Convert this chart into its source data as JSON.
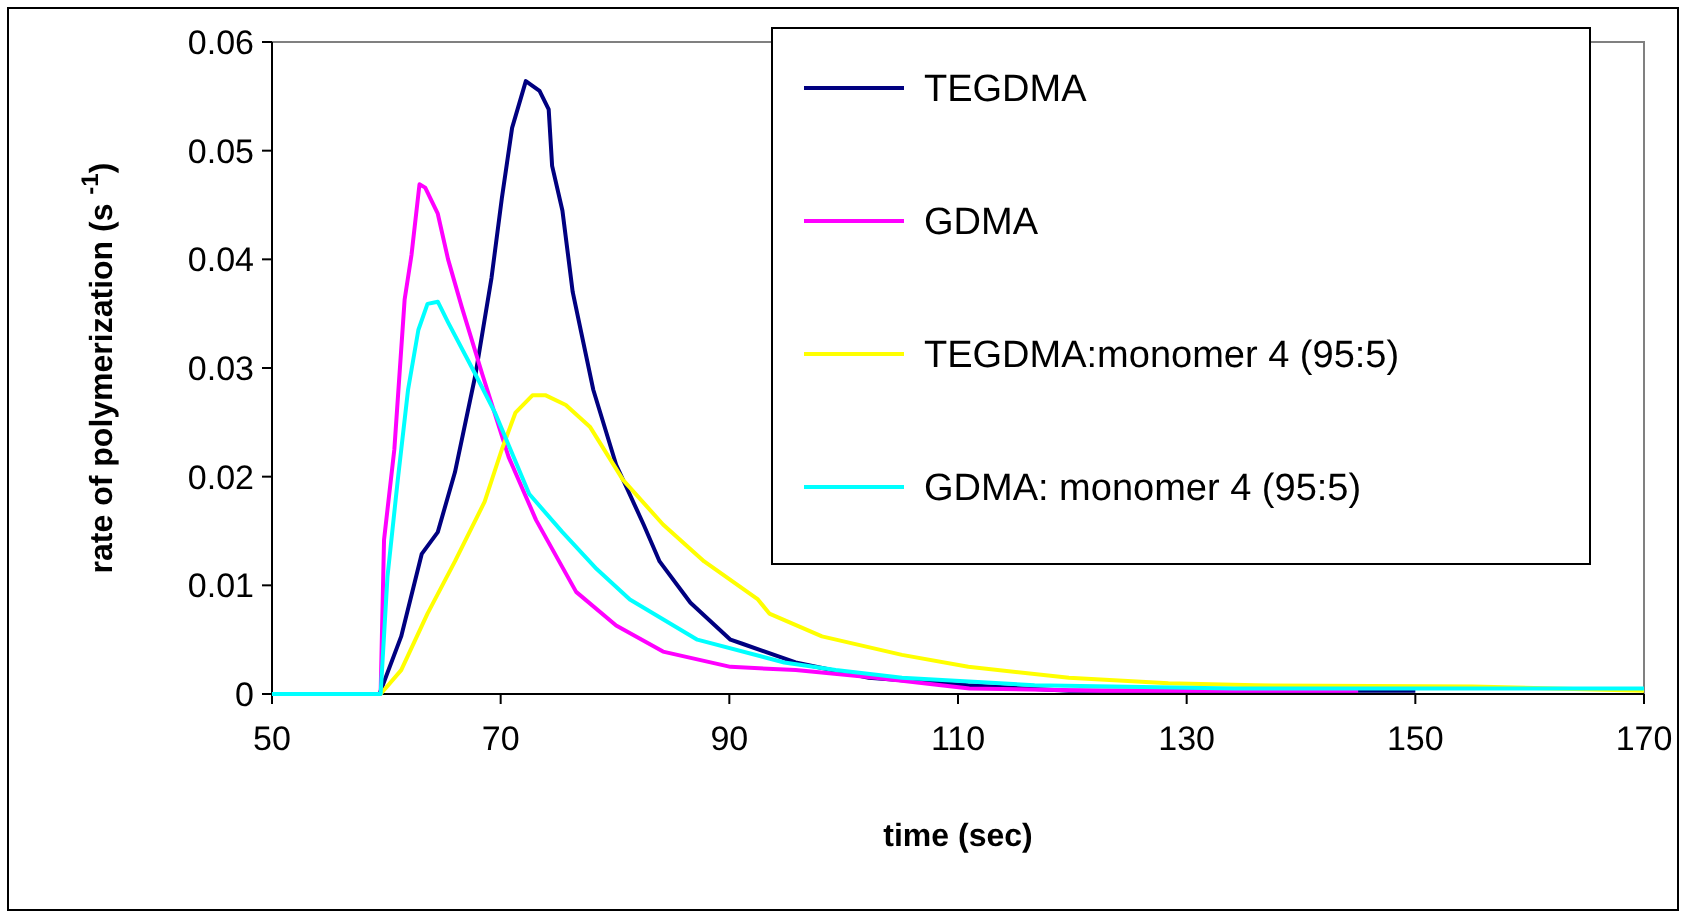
{
  "chart_data": {
    "type": "line",
    "xlabel": "time (sec)",
    "ylabel": "rate of polymerization (s $^{-1}$)",
    "xlim": [
      50,
      170
    ],
    "xticks": [
      50,
      70,
      90,
      110,
      130,
      150,
      170
    ],
    "ylim": [
      0,
      0.06
    ],
    "yticks": [
      0,
      0.01,
      0.02,
      0.03,
      0.04,
      0.05,
      0.06
    ],
    "grid": false,
    "legend": "top right",
    "marker": "none",
    "line_style": "solid",
    "series": [
      {
        "name": "TEGDMA",
        "color": "#000080",
        "x": [
          50,
          59.4,
          61.3,
          63.1,
          64.5,
          66,
          67.8,
          69.2,
          70.1,
          71,
          72.2,
          73.4,
          74.2,
          74.5,
          75.4,
          76.3,
          78.1,
          80.1,
          82.5,
          83.9,
          86.6,
          90.1,
          91.2,
          95.8,
          102.2,
          110.9,
          119.7,
          150
        ],
        "values": [
          0,
          0,
          0.0053,
          0.0129,
          0.0149,
          0.0204,
          0.0294,
          0.0383,
          0.0456,
          0.0521,
          0.0564,
          0.0555,
          0.0538,
          0.0486,
          0.0445,
          0.037,
          0.028,
          0.0211,
          0.0156,
          0.0122,
          0.0084,
          0.005,
          0.0046,
          0.0029,
          0.0015,
          0.0008,
          0.0003,
          0.0003
        ]
      },
      {
        "name": "GDMA",
        "color": "#ff00ff",
        "x": [
          50,
          59.5,
          59.8,
          60.7,
          61.6,
          62.2,
          62.9,
          63.4,
          64.5,
          65.4,
          66.6,
          68.4,
          70.7,
          73.1,
          76.6,
          80.1,
          84.2,
          90.1,
          95.8,
          102.8,
          111,
          122.6,
          145
        ],
        "values": [
          0,
          0,
          0.0142,
          0.0225,
          0.0363,
          0.0404,
          0.0469,
          0.0466,
          0.0442,
          0.04,
          0.0356,
          0.0294,
          0.0218,
          0.016,
          0.0094,
          0.0063,
          0.0039,
          0.0025,
          0.0022,
          0.0015,
          0.0005,
          0.0003,
          0.0003
        ]
      },
      {
        "name": "TEGDMA:monomer 4 (95:5)",
        "color": "#ffff00",
        "x": [
          50,
          59.5,
          61.3,
          63.6,
          66,
          68.6,
          70.1,
          71.3,
          72.8,
          73.9,
          75.7,
          77.8,
          80.7,
          84.2,
          87.8,
          92.5,
          93.5,
          98.1,
          105.1,
          110.9,
          119.7,
          128.4,
          136,
          155,
          170
        ],
        "values": [
          0,
          0,
          0.0022,
          0.0074,
          0.0122,
          0.0177,
          0.0225,
          0.0259,
          0.0275,
          0.0275,
          0.0266,
          0.0246,
          0.0197,
          0.0156,
          0.0122,
          0.0087,
          0.0074,
          0.0053,
          0.0036,
          0.0025,
          0.0015,
          0.001,
          0.0008,
          0.0007,
          0.0003
        ]
      },
      {
        "name": "GDMA: monomer 4 (95:5)",
        "color": "#00ffff",
        "x": [
          50,
          59.5,
          60.1,
          61,
          61.9,
          62.8,
          63.6,
          64.5,
          65.4,
          67.8,
          69.5,
          72.5,
          75.4,
          78.4,
          81.3,
          87.2,
          94.8,
          99.3,
          105.1,
          116.7,
          134.2,
          170
        ],
        "values": [
          0,
          0,
          0.0108,
          0.0197,
          0.028,
          0.0335,
          0.0359,
          0.0361,
          0.0342,
          0.0294,
          0.0259,
          0.0184,
          0.0149,
          0.0115,
          0.0087,
          0.005,
          0.0029,
          0.0022,
          0.0015,
          0.0008,
          0.0005,
          0.0005
        ]
      }
    ]
  }
}
